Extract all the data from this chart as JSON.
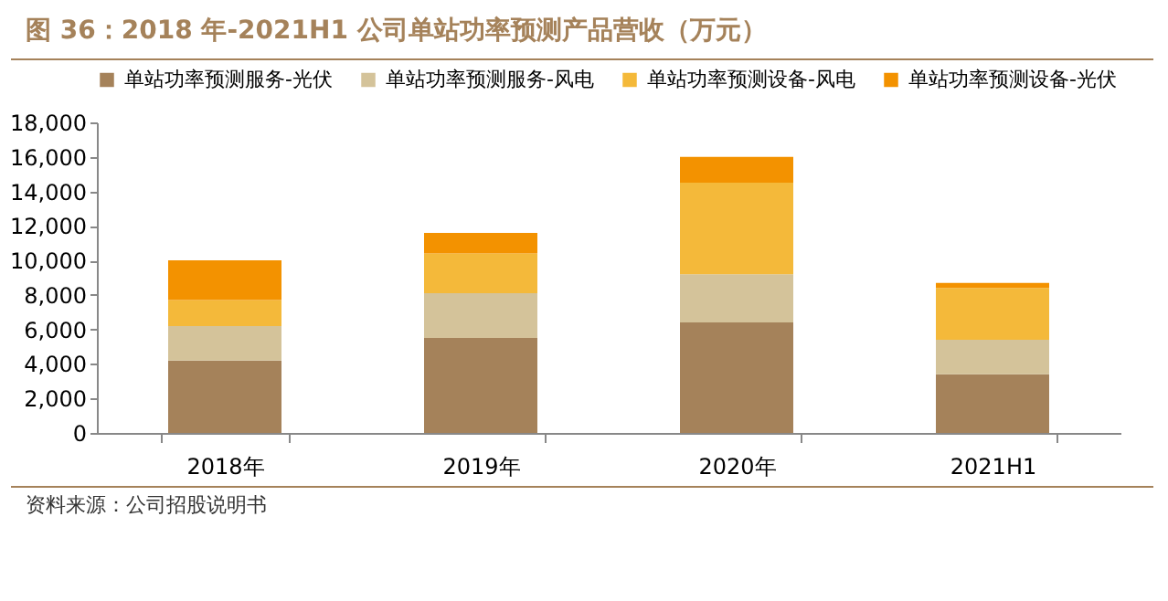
{
  "chart_data": {
    "type": "bar",
    "title": "图 36：2018 年-2021H1 公司单站功率预测产品营收（万元）",
    "annotations": [
      "资料来源：公司招股说明书"
    ],
    "categories": [
      "2018年",
      "2019年",
      "2020年",
      "2021H1"
    ],
    "series": [
      {
        "name": "单站功率预测服务-光伏",
        "color": "#a5825a",
        "values": [
          4200,
          5500,
          6400,
          3400
        ]
      },
      {
        "name": "单站功率预测服务-风电",
        "color": "#d4c39a",
        "values": [
          2000,
          2600,
          2800,
          2000
        ]
      },
      {
        "name": "单站功率预测设备-风电",
        "color": "#f4b93a",
        "values": [
          1500,
          2300,
          5300,
          3000
        ]
      },
      {
        "name": "单站功率预测设备-光伏",
        "color": "#f39200",
        "values": [
          2300,
          1200,
          1500,
          300
        ]
      }
    ],
    "stacked": true,
    "ylim": [
      0,
      18000
    ],
    "yticks": [
      0,
      {
        "value": 2000,
        "label": "2,000"
      },
      {
        "value": 4000,
        "label": "4,000"
      },
      {
        "value": 6000,
        "label": "6,000"
      },
      {
        "value": 8000,
        "label": "8,000"
      },
      {
        "value": 10000,
        "label": "10,000"
      },
      {
        "value": 12000,
        "label": "12,000"
      },
      {
        "value": 14000,
        "label": "14,000"
      },
      {
        "value": 16000,
        "label": "16,000"
      },
      {
        "value": 18000,
        "label": "18,000"
      }
    ],
    "grid": false,
    "legend": "top"
  }
}
